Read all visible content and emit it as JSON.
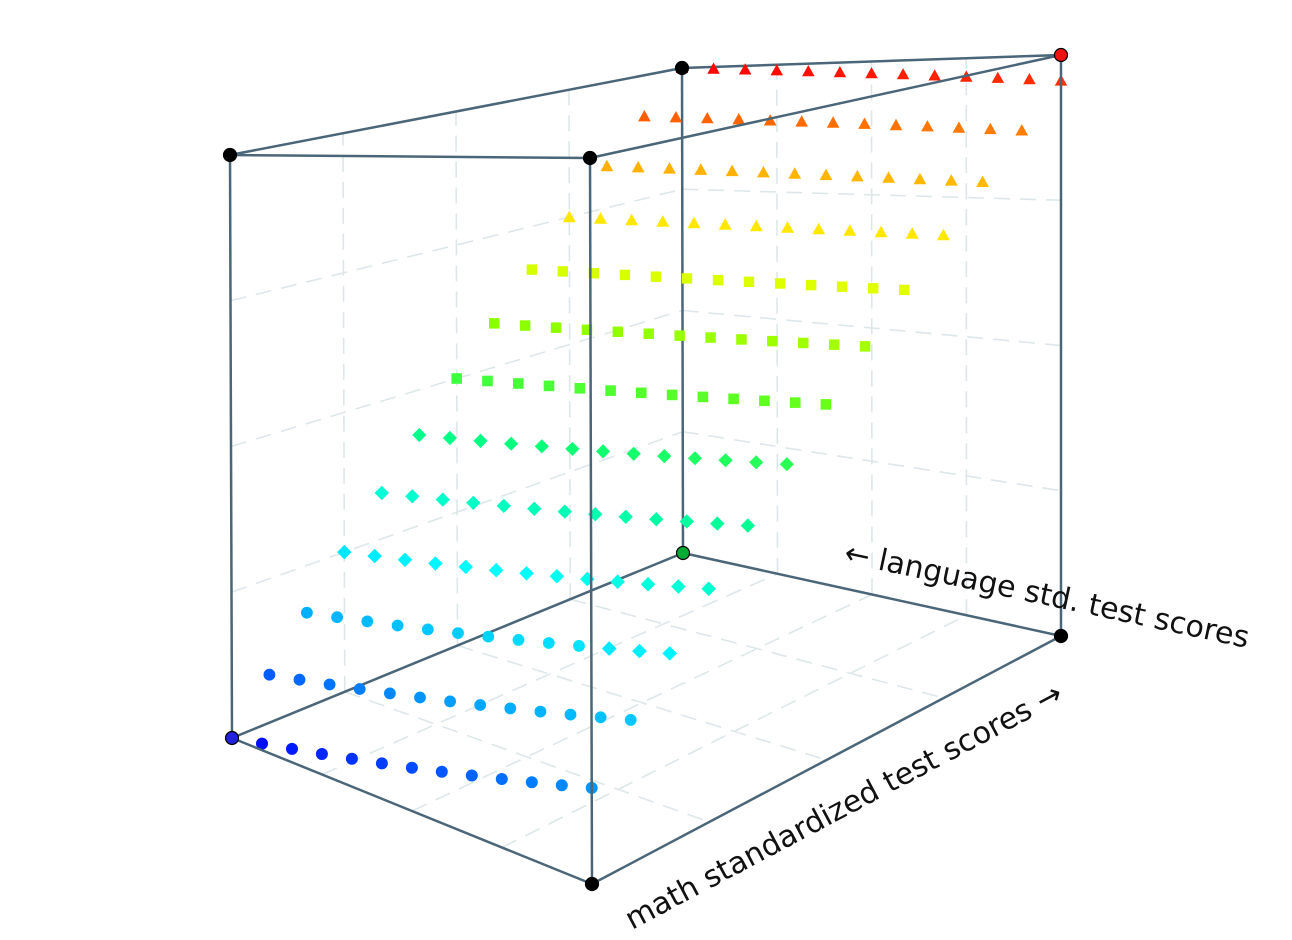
{
  "chart_data": {
    "type": "scatter",
    "subtype": "3d-surface-grid",
    "title": "",
    "xlabel": "math standardized test scores →",
    "ylabel": "← language std. test scores",
    "zlabel": "",
    "x_range": [
      0,
      12
    ],
    "y_range": [
      0,
      12
    ],
    "grid": true,
    "box": true,
    "marker_by_height": [
      "circle",
      "diamond",
      "square",
      "triangle"
    ],
    "colormap": [
      "#0000ff",
      "#00a0ff",
      "#00ffff",
      "#00ff80",
      "#80ff00",
      "#ffff00",
      "#ffa000",
      "#ff0000"
    ],
    "series": [
      {
        "y": 0,
        "x": [
          0,
          1,
          2,
          3,
          4,
          5,
          6,
          7,
          8,
          9,
          10,
          11,
          12
        ],
        "z": [
          0.0,
          0.09,
          0.18,
          0.27,
          0.36,
          0.45,
          0.54,
          0.63,
          0.72,
          0.81,
          0.9,
          0.99,
          1.08
        ]
      },
      {
        "y": 1,
        "x": [
          0,
          1,
          2,
          3,
          4,
          5,
          6,
          7,
          8,
          9,
          10,
          11,
          12
        ],
        "z": [
          0.68,
          0.76,
          0.84,
          0.92,
          1.0,
          1.08,
          1.16,
          1.24,
          1.32,
          1.4,
          1.48,
          1.56,
          1.64
        ]
      },
      {
        "y": 2,
        "x": [
          0,
          1,
          2,
          3,
          4,
          5,
          6,
          7,
          8,
          9,
          10,
          11,
          12
        ],
        "z": [
          1.36,
          1.43,
          1.5,
          1.57,
          1.64,
          1.71,
          1.78,
          1.85,
          1.92,
          1.99,
          2.06,
          2.13,
          2.2
        ]
      },
      {
        "y": 3,
        "x": [
          0,
          1,
          2,
          3,
          4,
          5,
          6,
          7,
          8,
          9,
          10,
          11,
          12
        ],
        "z": [
          2.04,
          2.1,
          2.16,
          2.22,
          2.28,
          2.34,
          2.4,
          2.46,
          2.52,
          2.58,
          2.64,
          2.7,
          2.76
        ]
      },
      {
        "y": 4,
        "x": [
          0,
          1,
          2,
          3,
          4,
          5,
          6,
          7,
          8,
          9,
          10,
          11,
          12
        ],
        "z": [
          2.72,
          2.77,
          2.82,
          2.87,
          2.92,
          2.97,
          3.02,
          3.07,
          3.12,
          3.17,
          3.22,
          3.27,
          3.32
        ]
      },
      {
        "y": 5,
        "x": [
          0,
          1,
          2,
          3,
          4,
          5,
          6,
          7,
          8,
          9,
          10,
          11,
          12
        ],
        "z": [
          3.4,
          3.44,
          3.48,
          3.52,
          3.56,
          3.6,
          3.64,
          3.68,
          3.72,
          3.76,
          3.8,
          3.84,
          3.88
        ]
      },
      {
        "y": 6,
        "x": [
          0,
          1,
          2,
          3,
          4,
          5,
          6,
          7,
          8,
          9,
          10,
          11,
          12
        ],
        "z": [
          4.08,
          4.11,
          4.14,
          4.17,
          4.2,
          4.23,
          4.26,
          4.29,
          4.32,
          4.35,
          4.38,
          4.41,
          4.44
        ]
      },
      {
        "y": 7,
        "x": [
          0,
          1,
          2,
          3,
          4,
          5,
          6,
          7,
          8,
          9,
          10,
          11,
          12
        ],
        "z": [
          4.76,
          4.78,
          4.8,
          4.82,
          4.84,
          4.86,
          4.88,
          4.9,
          4.92,
          4.94,
          4.96,
          4.98,
          5.0
        ]
      },
      {
        "y": 8,
        "x": [
          0,
          1,
          2,
          3,
          4,
          5,
          6,
          7,
          8,
          9,
          10,
          11,
          12
        ],
        "z": [
          5.44,
          5.45,
          5.46,
          5.47,
          5.48,
          5.49,
          5.5,
          5.51,
          5.52,
          5.53,
          5.54,
          5.55,
          5.56
        ]
      },
      {
        "y": 9,
        "x": [
          0,
          1,
          2,
          3,
          4,
          5,
          6,
          7,
          8,
          9,
          10,
          11,
          12
        ],
        "z": [
          6.12,
          6.12,
          6.12,
          6.12,
          6.12,
          6.12,
          6.12,
          6.12,
          6.12,
          6.12,
          6.12,
          6.12,
          6.12
        ]
      },
      {
        "y": 10,
        "x": [
          0,
          1,
          2,
          3,
          4,
          5,
          6,
          7,
          8,
          9,
          10,
          11,
          12
        ],
        "z": [
          6.8,
          6.79,
          6.78,
          6.77,
          6.76,
          6.75,
          6.74,
          6.73,
          6.72,
          6.71,
          6.7,
          6.69,
          6.68
        ]
      },
      {
        "y": 11,
        "x": [
          0,
          1,
          2,
          3,
          4,
          5,
          6,
          7,
          8,
          9,
          10,
          11,
          12
        ],
        "z": [
          7.48,
          7.46,
          7.44,
          7.42,
          7.4,
          7.38,
          7.36,
          7.34,
          7.32,
          7.3,
          7.28,
          7.26,
          7.24
        ]
      },
      {
        "y": 12,
        "x": [
          0,
          1,
          2,
          3,
          4,
          5,
          6,
          7,
          8,
          9,
          10,
          11,
          12
        ],
        "z": [
          8.16,
          8.13,
          8.1,
          8.07,
          8.04,
          8.01,
          7.98,
          7.95,
          7.92,
          7.89,
          7.86,
          7.83,
          7.8
        ]
      }
    ]
  }
}
